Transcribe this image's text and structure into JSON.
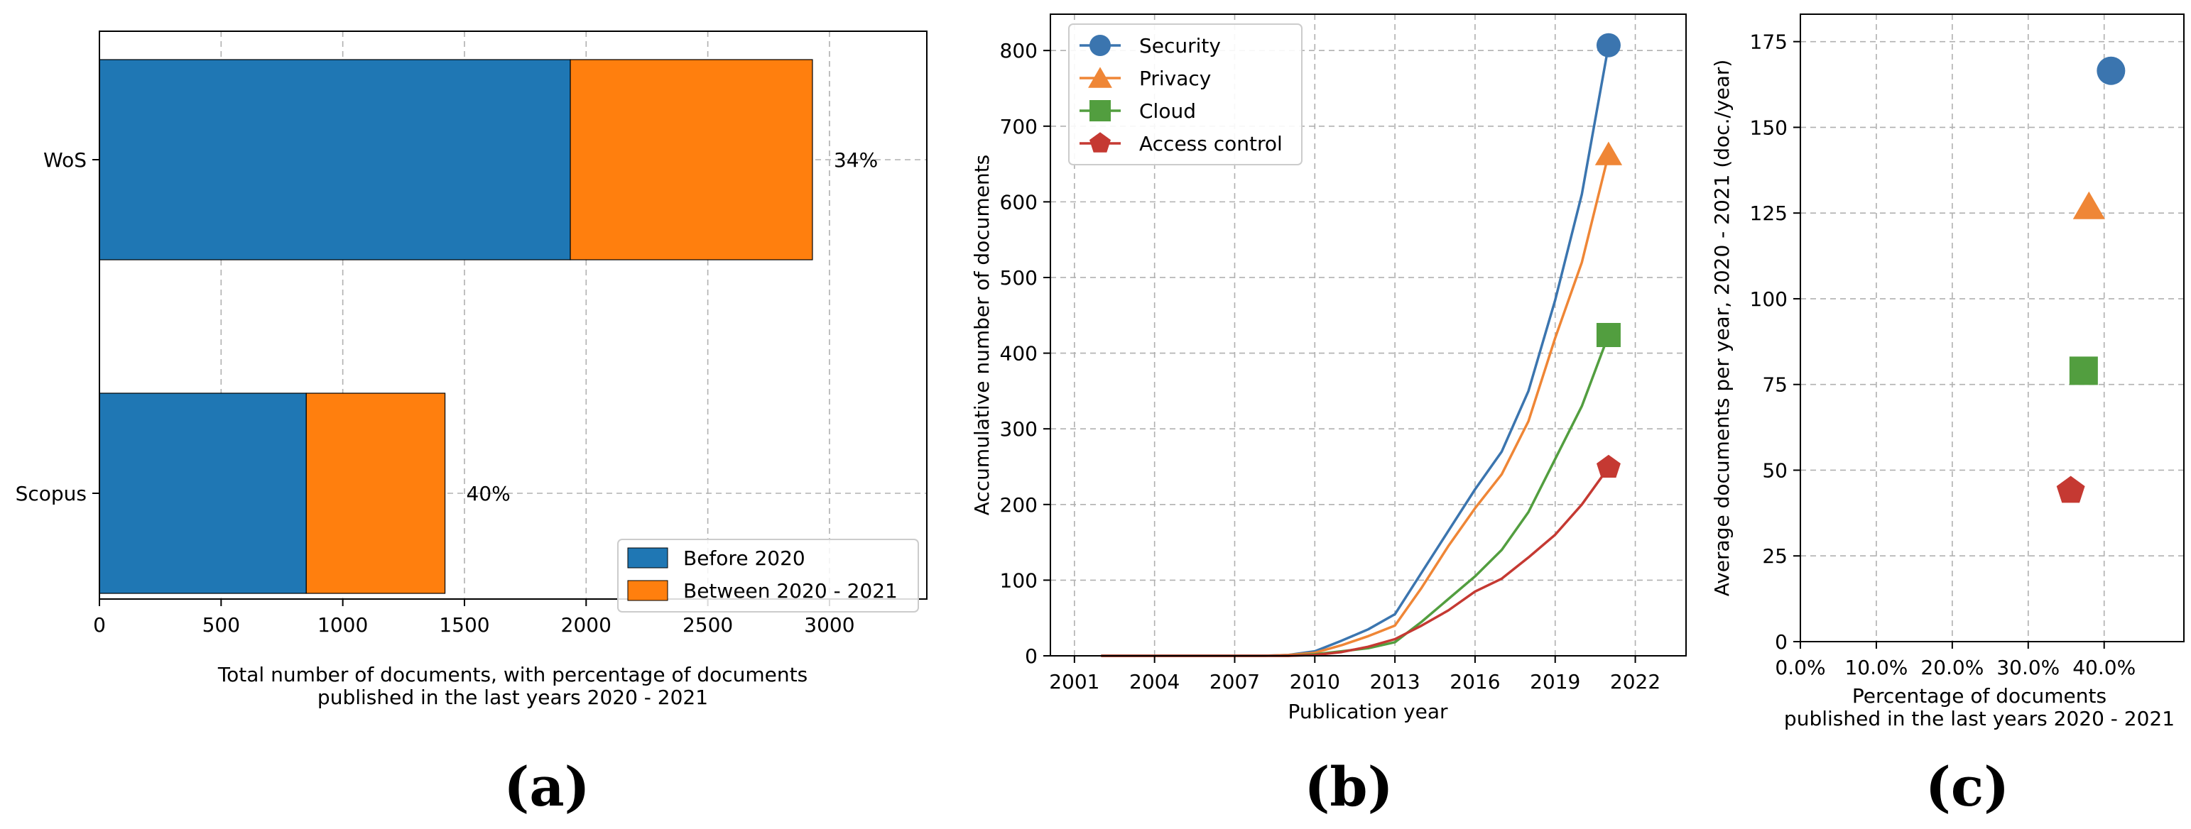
{
  "chart_data": [
    {
      "panel_label": "(a)",
      "type": "bar",
      "orientation": "horizontal",
      "stacked": true,
      "categories": [
        "Scopus",
        "WoS"
      ],
      "series": [
        {
          "name": "Before 2020",
          "color": "#1f77b4",
          "values": [
            850,
            1935
          ]
        },
        {
          "name": "Between 2020 - 2021",
          "color": "#ff7f0e",
          "values": [
            570,
            995
          ]
        }
      ],
      "annotations": [
        "40%",
        "34%"
      ],
      "xlabel": "Total number of documents, with percentage of documents",
      "xlabel_line2": "published in the last years 2020 - 2021",
      "xlim": [
        0,
        3400
      ],
      "xticks": [
        0,
        500,
        1000,
        1500,
        2000,
        2500,
        3000
      ],
      "grid": true,
      "legend_position": "lower-right"
    },
    {
      "panel_label": "(b)",
      "type": "line",
      "x": [
        2002,
        2003,
        2004,
        2005,
        2006,
        2007,
        2008,
        2009,
        2010,
        2011,
        2012,
        2013,
        2014,
        2015,
        2016,
        2017,
        2018,
        2019,
        2020,
        2021
      ],
      "series": [
        {
          "name": "Security",
          "color": "#3b75af",
          "marker": "circle",
          "values": [
            0,
            0,
            0,
            0,
            0,
            0,
            0,
            1,
            6,
            20,
            35,
            55,
            110,
            165,
            220,
            270,
            350,
            470,
            610,
            807
          ]
        },
        {
          "name": "Privacy",
          "color": "#ef8636",
          "marker": "triangle",
          "values": [
            0,
            0,
            0,
            0,
            0,
            0,
            0,
            1,
            4,
            14,
            26,
            40,
            90,
            145,
            195,
            240,
            310,
            420,
            520,
            663
          ]
        },
        {
          "name": "Cloud",
          "color": "#529e3f",
          "marker": "square",
          "values": [
            0,
            0,
            0,
            0,
            0,
            0,
            0,
            0,
            2,
            6,
            10,
            18,
            45,
            75,
            105,
            140,
            190,
            260,
            330,
            424
          ]
        },
        {
          "name": "Access control",
          "color": "#c53932",
          "marker": "pentagon",
          "values": [
            0,
            0,
            0,
            0,
            0,
            0,
            0,
            0,
            1,
            5,
            12,
            22,
            40,
            60,
            85,
            102,
            130,
            160,
            200,
            249
          ]
        }
      ],
      "xlabel": "Publication year",
      "ylabel": "Accumulative number of documents",
      "xlim": [
        2000.1,
        2023.9
      ],
      "ylim": [
        0,
        848
      ],
      "xticks": [
        2001,
        2004,
        2007,
        2010,
        2013,
        2016,
        2019,
        2022
      ],
      "yticks": [
        0,
        100,
        200,
        300,
        400,
        500,
        600,
        700,
        800
      ],
      "grid": true,
      "legend_position": "top-left"
    },
    {
      "panel_label": "(c)",
      "type": "scatter",
      "points": [
        {
          "name": "Security",
          "x": 40.9,
          "y": 166.5,
          "color": "#3b75af",
          "marker": "circle"
        },
        {
          "name": "Privacy",
          "x": 38.0,
          "y": 127,
          "color": "#ef8636",
          "marker": "triangle"
        },
        {
          "name": "Cloud",
          "x": 37.3,
          "y": 79,
          "color": "#529e3f",
          "marker": "square"
        },
        {
          "name": "Access control",
          "x": 35.6,
          "y": 44,
          "color": "#c53932",
          "marker": "pentagon"
        }
      ],
      "xlabel": "Percentage of documents",
      "xlabel_line2": "published in the last years 2020 - 2021",
      "ylabel": "Average documents per year, 2020 - 2021 (doc./year)",
      "xlim": [
        0,
        50.5
      ],
      "ylim": [
        0,
        183
      ],
      "xticks": [
        0,
        10,
        20,
        30,
        40
      ],
      "xticklabels": [
        "0.0%",
        "10.0%",
        "20.0%",
        "30.0%",
        "40.0%"
      ],
      "yticks": [
        0,
        25,
        50,
        75,
        100,
        125,
        150,
        175
      ],
      "grid": true
    }
  ]
}
